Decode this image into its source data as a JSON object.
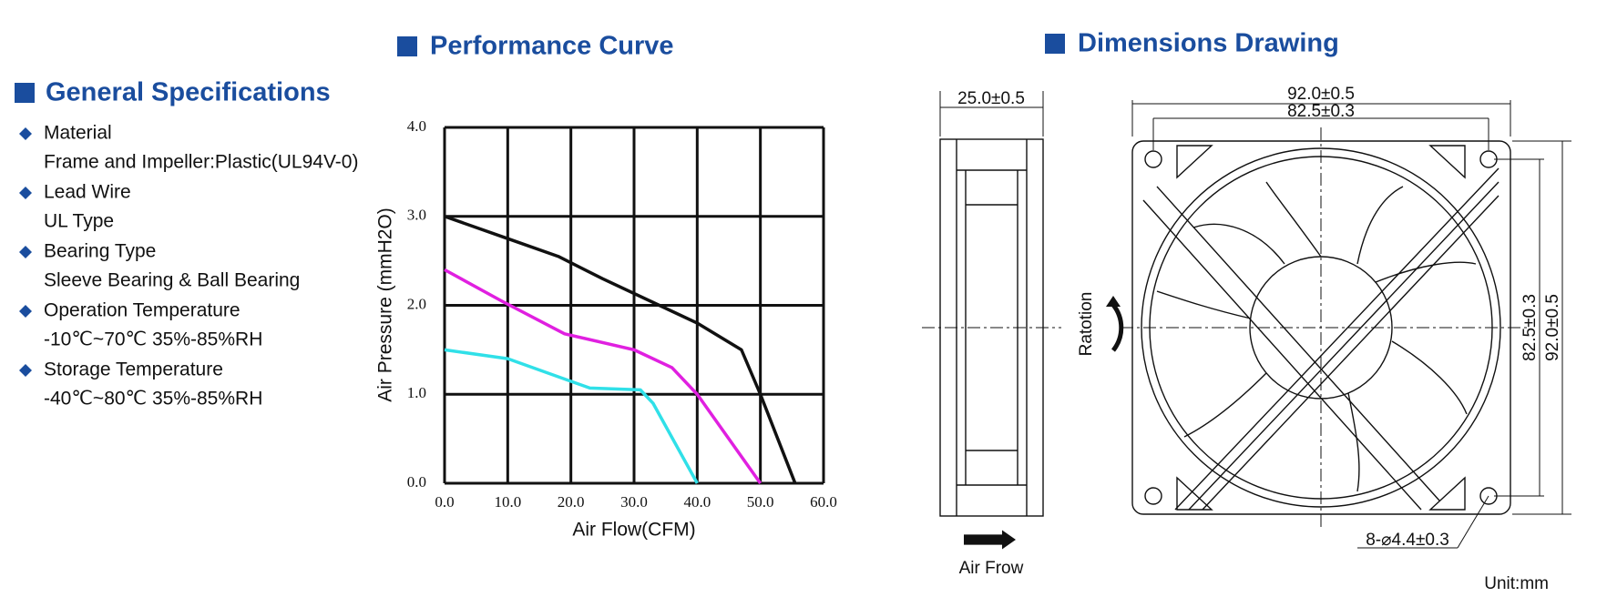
{
  "specs": {
    "title": "General Specifications",
    "items": [
      {
        "label": "Material",
        "detail": "Frame and Impeller:Plastic(UL94V-0)"
      },
      {
        "label": "Lead Wire",
        "detail": "UL Type"
      },
      {
        "label": "Bearing Type",
        "detail": "Sleeve Bearing & Ball Bearing"
      },
      {
        "label": "Operation Temperature",
        "detail": "-10℃~70℃  35%-85%RH"
      },
      {
        "label": "Storage Temperature",
        "detail": "-40℃~80℃  35%-85%RH"
      }
    ]
  },
  "chart_data": {
    "type": "line",
    "title": "Performance Curve",
    "x_label": "Air Flow(CFM)",
    "y_label": "Air Pressure (mmH2O)",
    "xlim": [
      0,
      60
    ],
    "ylim": [
      0,
      4
    ],
    "grid": true,
    "xticks": [
      {
        "value": 0,
        "label": "0.0"
      },
      {
        "value": 10,
        "label": "10.0"
      },
      {
        "value": 20,
        "label": "20.0"
      },
      {
        "value": 30,
        "label": "30.0"
      },
      {
        "value": 40,
        "label": "40.0"
      },
      {
        "value": 50,
        "label": "50.0"
      },
      {
        "value": 60,
        "label": "60.0"
      }
    ],
    "yticks": [
      {
        "value": 0,
        "label": "0.0"
      },
      {
        "value": 1,
        "label": "1.0"
      },
      {
        "value": 2,
        "label": "2.0"
      },
      {
        "value": 3,
        "label": "3.0"
      },
      {
        "value": 4,
        "label": "4.0"
      }
    ],
    "series": [
      {
        "color": "#111111",
        "x": [
          0,
          10,
          18,
          25,
          34,
          40,
          47,
          50,
          55.5
        ],
        "values": [
          3.0,
          2.75,
          2.55,
          2.3,
          2.0,
          1.8,
          1.5,
          1.0,
          0
        ]
      },
      {
        "color": "#e020e0",
        "x": [
          0,
          9,
          19,
          30,
          36,
          40,
          50
        ],
        "values": [
          2.4,
          2.05,
          1.68,
          1.5,
          1.3,
          1.0,
          0
        ]
      },
      {
        "color": "#30e0e8",
        "x": [
          0,
          10,
          23,
          31,
          33,
          40
        ],
        "values": [
          1.5,
          1.4,
          1.07,
          1.05,
          0.9,
          0
        ]
      }
    ]
  },
  "dimensions": {
    "title": "Dimensions Drawing",
    "depth": "25.0±0.5",
    "width": "92.0±0.5",
    "hole_span": "82.5±0.3",
    "hole_span_v": "82.5±0.3",
    "height": "92.0±0.5",
    "rotation": "Ratotion",
    "holes": "8-⌀4.4±0.3",
    "airflow": "Air Frow",
    "unit": "Unit:mm"
  }
}
